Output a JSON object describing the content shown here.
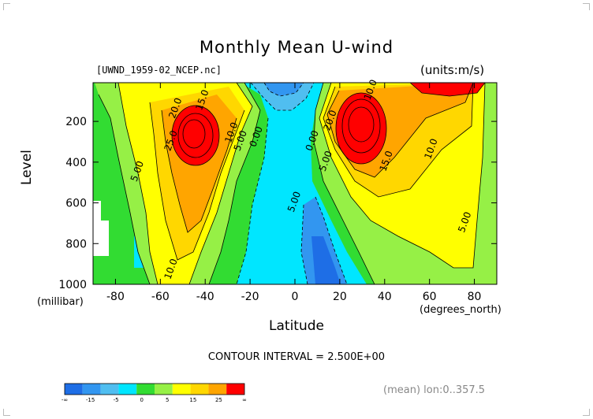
{
  "header": {
    "title": "Monthly Mean U-wind",
    "file": "[UWND_1959-02_NCEP.nc]",
    "units": "(units:m/s)"
  },
  "axes": {
    "ylabel": "Level",
    "ycaption": "(millibar)",
    "xlabel": "Latitude",
    "xcaption": "(degrees_north)"
  },
  "footer": {
    "contour_interval": "CONTOUR INTERVAL = 2.500E+00",
    "mean": "(mean) lon:0..357.5"
  },
  "chart_data": {
    "type": "heatmap",
    "title": "Monthly Mean U-wind",
    "xlabel": "Latitude",
    "ylabel": "Level",
    "xlim": [
      -90,
      90
    ],
    "ylim": [
      1000,
      10
    ],
    "x_ticks": [
      -80,
      -60,
      -40,
      -20,
      0,
      20,
      40,
      60,
      80
    ],
    "y_ticks": [
      200,
      400,
      600,
      800,
      1000
    ],
    "contour_labels": [
      {
        "text": "15.0",
        "x": -40,
        "y": 100
      },
      {
        "text": "20.0",
        "x": -52,
        "y": 140
      },
      {
        "text": "25.0",
        "x": -54,
        "y": 300
      },
      {
        "text": "10.0",
        "x": -27,
        "y": 260
      },
      {
        "text": "5.00",
        "x": -23,
        "y": 300
      },
      {
        "text": "0.00",
        "x": -16,
        "y": 280
      },
      {
        "text": "5.00",
        "x": -69,
        "y": 450
      },
      {
        "text": "10.0",
        "x": -54,
        "y": 930
      },
      {
        "text": "5.00",
        "x": 1,
        "y": 600
      },
      {
        "text": "0.00",
        "x": 9,
        "y": 300
      },
      {
        "text": "5.00",
        "x": 15,
        "y": 400
      },
      {
        "text": "10.0",
        "x": 35,
        "y": 50
      },
      {
        "text": "20.0",
        "x": 17,
        "y": 200
      },
      {
        "text": "15.0",
        "x": 42,
        "y": 400
      },
      {
        "text": "10.0",
        "x": 62,
        "y": 340
      },
      {
        "text": "5.00",
        "x": 77,
        "y": 700
      }
    ],
    "colorbar": {
      "colors": [
        "#1e6ee6",
        "#3296f0",
        "#50bef0",
        "#00e6ff",
        "#32dc32",
        "#96f046",
        "#ffff00",
        "#ffd700",
        "#ffa500",
        "#ff0000"
      ],
      "labels": [
        "-∞",
        "-15",
        "-5",
        "0",
        "5",
        "15",
        "25",
        "∞"
      ]
    }
  }
}
